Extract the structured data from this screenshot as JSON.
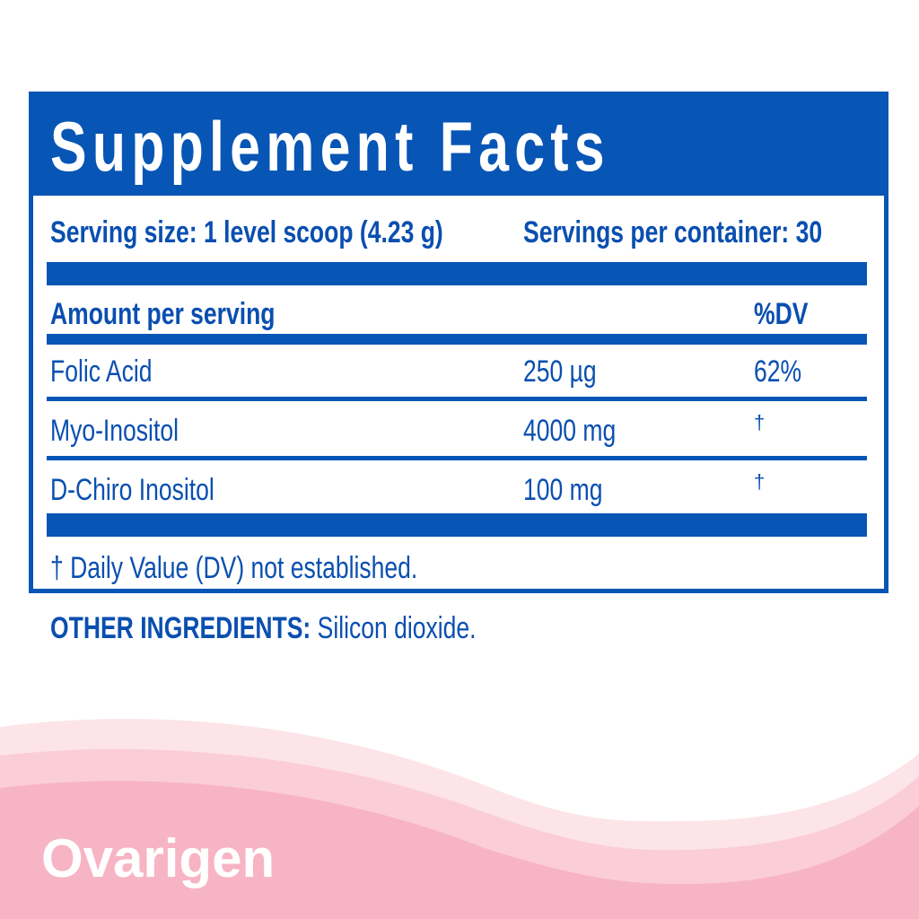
{
  "title": "Supplement Facts",
  "serving_size": "Serving size: 1 level scoop (4.23 g)",
  "servings_per_container": "Servings per container: 30",
  "header": {
    "amount": "Amount per serving",
    "dv": "%DV"
  },
  "rows": [
    {
      "name": "Folic Acid",
      "amount": "250 µg",
      "dv": "62%"
    },
    {
      "name": "Myo-Inositol",
      "amount": "4000 mg",
      "dv": "†"
    },
    {
      "name": "D-Chiro Inositol",
      "amount": "100 mg",
      "dv": "†"
    }
  ],
  "footnote": "† Daily Value (DV) not established.",
  "other_label": "OTHER INGREDIENTS:",
  "other_value": " Silicon dioxide.",
  "brand": "Ovarigen",
  "colors": {
    "blue": "#0755b5",
    "pink_light": "#fce4e8",
    "pink_mid": "#fbcdd7",
    "pink_dark": "#f7b4c4"
  }
}
